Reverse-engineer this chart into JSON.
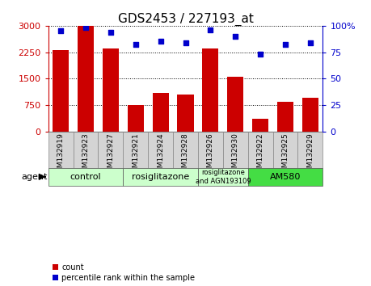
{
  "title": "GDS2453 / 227193_at",
  "samples": [
    "GSM132919",
    "GSM132923",
    "GSM132927",
    "GSM132921",
    "GSM132924",
    "GSM132928",
    "GSM132926",
    "GSM132930",
    "GSM132922",
    "GSM132925",
    "GSM132929"
  ],
  "counts": [
    2300,
    3000,
    2350,
    750,
    1100,
    1050,
    2350,
    1550,
    350,
    850,
    950
  ],
  "percentiles": [
    95,
    98,
    94,
    82,
    85,
    84,
    96,
    90,
    73,
    82,
    84
  ],
  "bar_color": "#cc0000",
  "dot_color": "#0000cc",
  "ylim_left": [
    0,
    3000
  ],
  "ylim_right": [
    0,
    100
  ],
  "yticks_left": [
    0,
    750,
    1500,
    2250,
    3000
  ],
  "yticks_right": [
    0,
    25,
    50,
    75,
    100
  ],
  "groups": [
    {
      "label": "control",
      "start": 0,
      "end": 3,
      "color": "#ccffcc"
    },
    {
      "label": "rosiglitazone",
      "start": 3,
      "end": 6,
      "color": "#ccffcc"
    },
    {
      "label": "rosiglitazone\nand AGN193109",
      "start": 6,
      "end": 8,
      "color": "#ccffcc"
    },
    {
      "label": "AM580",
      "start": 8,
      "end": 11,
      "color": "#44dd44"
    }
  ],
  "xtick_bg": "#d4d4d4",
  "xtick_border": "#888888",
  "agent_label": "agent",
  "legend_count_label": "count",
  "legend_pct_label": "percentile rank within the sample",
  "title_fontsize": 11,
  "tick_label_fontsize": 6.5,
  "group_label_fontsize": 8,
  "small_group_fontsize": 6,
  "axis_tick_fontsize": 8,
  "legend_fontsize": 7,
  "bar_width": 0.65
}
